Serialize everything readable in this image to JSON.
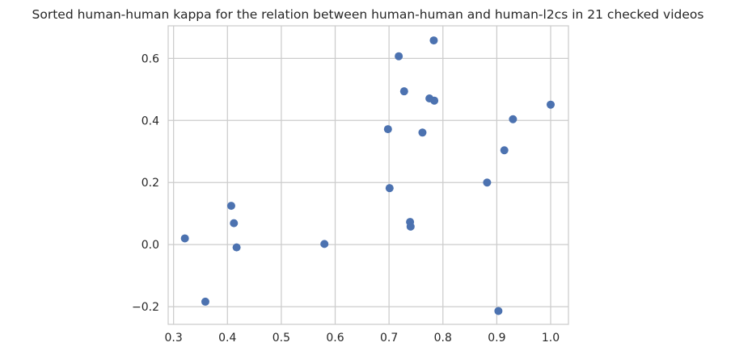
{
  "chart_data": {
    "type": "scatter",
    "title": "Sorted human-human kappa for the relation between human-human and human-l2cs in 21 checked videos",
    "xlabel": "",
    "ylabel": "",
    "xlim": [
      0.29,
      1.033
    ],
    "ylim": [
      -0.257,
      0.705
    ],
    "xticks": [
      0.3,
      0.4,
      0.5,
      0.6,
      0.7,
      0.8,
      0.9,
      1.0
    ],
    "xtick_labels": [
      "0.3",
      "0.4",
      "0.5",
      "0.6",
      "0.7",
      "0.8",
      "0.9",
      "1.0"
    ],
    "yticks": [
      -0.2,
      0.0,
      0.2,
      0.4,
      0.6
    ],
    "ytick_labels": [
      "−0.2",
      "0.0",
      "0.2",
      "0.4",
      "0.6"
    ],
    "grid": true,
    "marker_color": "#4c72b0",
    "grid_color": "#cccccc",
    "points": [
      {
        "x": 0.321,
        "y": 0.02
      },
      {
        "x": 0.359,
        "y": -0.184
      },
      {
        "x": 0.407,
        "y": 0.125
      },
      {
        "x": 0.412,
        "y": 0.069
      },
      {
        "x": 0.417,
        "y": -0.009
      },
      {
        "x": 0.58,
        "y": 0.002
      },
      {
        "x": 0.698,
        "y": 0.372
      },
      {
        "x": 0.701,
        "y": 0.182
      },
      {
        "x": 0.718,
        "y": 0.607
      },
      {
        "x": 0.728,
        "y": 0.494
      },
      {
        "x": 0.739,
        "y": 0.073
      },
      {
        "x": 0.74,
        "y": 0.058
      },
      {
        "x": 0.762,
        "y": 0.361
      },
      {
        "x": 0.775,
        "y": 0.471
      },
      {
        "x": 0.783,
        "y": 0.658
      },
      {
        "x": 0.784,
        "y": 0.464
      },
      {
        "x": 0.882,
        "y": 0.2
      },
      {
        "x": 0.903,
        "y": -0.214
      },
      {
        "x": 0.914,
        "y": 0.304
      },
      {
        "x": 0.93,
        "y": 0.404
      },
      {
        "x": 1.0,
        "y": 0.451
      }
    ]
  }
}
